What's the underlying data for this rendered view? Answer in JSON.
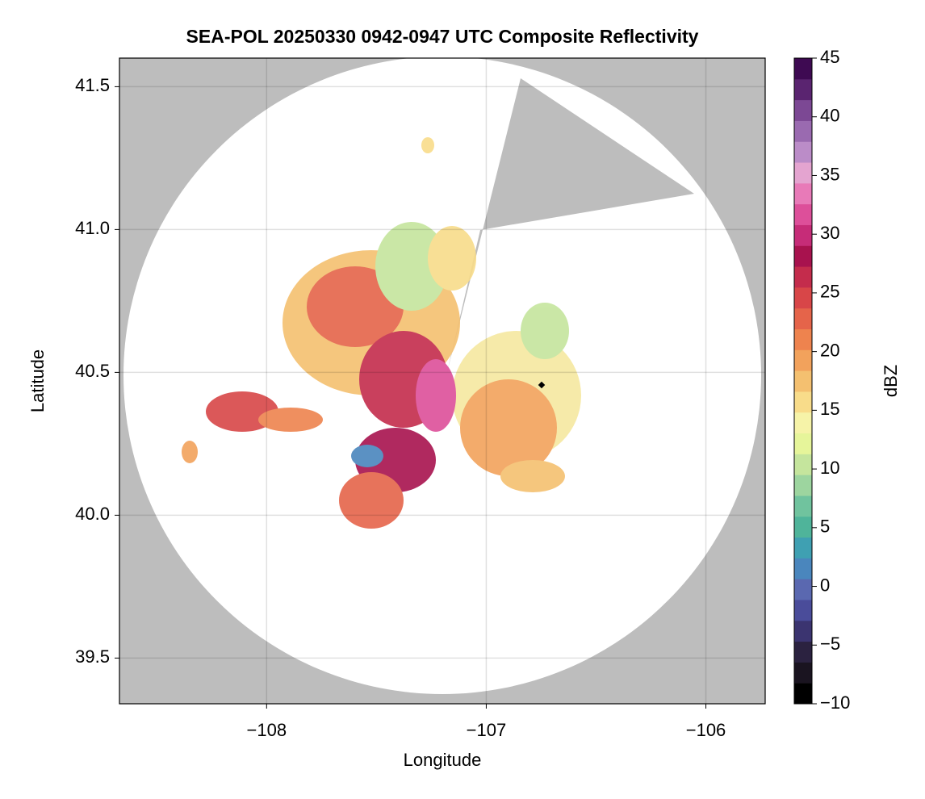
{
  "chart_data": {
    "type": "radar-map",
    "title": "SEA-POL 20250330 0942-0947 UTC Composite Reflectivity",
    "x_label": "Longitude",
    "y_label": "Latitude",
    "xlim": [
      -108.67,
      -105.73
    ],
    "xticks": [
      {
        "value": -108,
        "label": "−108"
      },
      {
        "value": -107,
        "label": "−107"
      },
      {
        "value": -106,
        "label": "−106"
      }
    ],
    "ylim": [
      39.34,
      41.6
    ],
    "yticks": [
      39.5,
      {
        "value": 40,
        "label": "40.0"
      },
      40.5,
      {
        "value": 41,
        "label": "41.0"
      },
      41.5
    ],
    "grid": true,
    "colorbar": {
      "label": "dBZ",
      "lim": [
        -10,
        45
      ],
      "ticks": [
        {
          "value": -10,
          "label": "−10"
        },
        {
          "value": -5,
          "label": "−5"
        },
        0,
        5,
        10,
        15,
        20,
        25,
        30,
        35,
        40,
        45
      ],
      "colors": [
        "#000000",
        "#1a1420",
        "#2b2240",
        "#3b3470",
        "#4a4c9a",
        "#5a68b0",
        "#4a86bd",
        "#3fa0b2",
        "#4fb49a",
        "#70c39e",
        "#9dd59f",
        "#c5e59d",
        "#e6f59a",
        "#f6f3a8",
        "#f8dc8a",
        "#f4c070",
        "#f2a25c",
        "#ee834e",
        "#e5644a",
        "#d84648",
        "#c42c4c",
        "#a8124e",
        "#c62c78",
        "#dd4f9a",
        "#e87ab8",
        "#e4a4d0",
        "#bb8cc8",
        "#9a6ab0",
        "#7c4894",
        "#5a2470",
        "#3e0a52"
      ]
    }
  }
}
